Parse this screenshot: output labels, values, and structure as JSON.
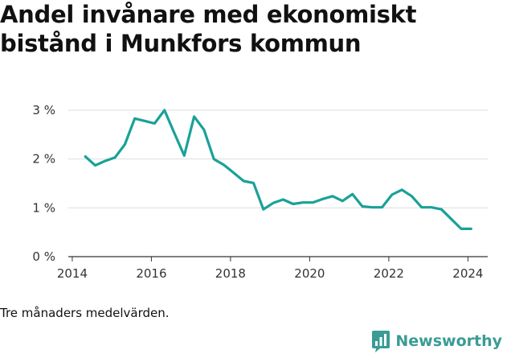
{
  "chart_data": {
    "type": "line",
    "title": "Andel invånare med ekonomiskt bistånd i Munkfors kommun",
    "note": "Tre månaders medelvärden.",
    "xlabel": "",
    "ylabel": "",
    "xlim": [
      2013.9,
      2024.5
    ],
    "ylim": [
      0,
      3
    ],
    "x_ticks": [
      2014,
      2016,
      2018,
      2020,
      2022,
      2024
    ],
    "x_tick_labels": [
      "2014",
      "2016",
      "2018",
      "2020",
      "2022",
      "2024"
    ],
    "y_ticks": [
      0,
      1,
      2,
      3
    ],
    "y_tick_labels": [
      "0 %",
      "1 %",
      "2 %",
      "3 %"
    ],
    "grid": true,
    "series": [
      {
        "color": "#1aa198",
        "x": [
          2014.33,
          2014.58,
          2014.83,
          2015.08,
          2015.33,
          2015.58,
          2015.83,
          2016.08,
          2016.33,
          2016.58,
          2016.83,
          2017.08,
          2017.33,
          2017.58,
          2017.83,
          2018.08,
          2018.33,
          2018.58,
          2018.83,
          2019.08,
          2019.33,
          2019.58,
          2019.83,
          2020.08,
          2020.33,
          2020.58,
          2020.83,
          2021.08,
          2021.33,
          2021.58,
          2021.83,
          2022.08,
          2022.33,
          2022.58,
          2022.83,
          2023.08,
          2023.33,
          2023.58,
          2023.83,
          2024.08
        ],
        "y": [
          2.05,
          1.87,
          1.96,
          2.03,
          2.3,
          2.83,
          2.78,
          2.73,
          3.0,
          2.53,
          2.07,
          2.87,
          2.6,
          2.0,
          1.88,
          1.72,
          1.55,
          1.51,
          0.97,
          1.1,
          1.17,
          1.08,
          1.11,
          1.11,
          1.18,
          1.24,
          1.14,
          1.28,
          1.03,
          1.01,
          1.01,
          1.27,
          1.37,
          1.24,
          1.01,
          1.01,
          0.97,
          0.77,
          0.57,
          0.57
        ]
      }
    ]
  },
  "brand": {
    "name": "Newsworthy",
    "icon": "newsworthy-logo-icon",
    "color": "#3a9c94"
  }
}
